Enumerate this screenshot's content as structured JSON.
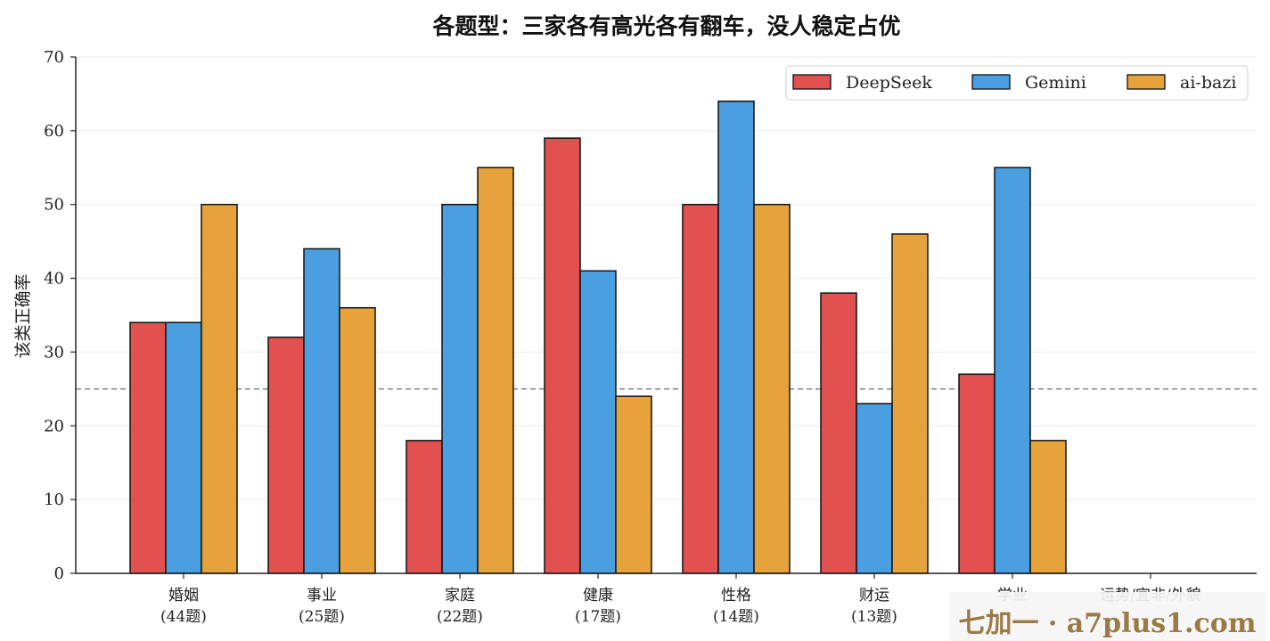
{
  "chart_data": {
    "type": "bar",
    "title": "各题型：三家各有高光各有翻车，没人稳定占优",
    "xlabel": "",
    "ylabel": "该类正确率",
    "ylim": [
      0,
      70
    ],
    "yticks": [
      0,
      10,
      20,
      30,
      40,
      50,
      60,
      70
    ],
    "grid": true,
    "legend_position": "top-right",
    "reference_line": 25,
    "categories": [
      "婚姻\n(44题)",
      "事业\n(25题)",
      "家庭\n(22题)",
      "健康\n(17题)",
      "性格\n(14题)",
      "财运\n(13题)",
      "学业",
      "运势/宜非/外貌"
    ],
    "series": [
      {
        "name": "DeepSeek",
        "color": "#e05150",
        "values": [
          34,
          32,
          18,
          59,
          50,
          38,
          27,
          0
        ]
      },
      {
        "name": "Gemini",
        "color": "#4a9fe0",
        "values": [
          34,
          44,
          50,
          41,
          64,
          23,
          55,
          0
        ]
      },
      {
        "name": "ai-bazi",
        "color": "#e6a33c",
        "values": [
          50,
          36,
          55,
          24,
          50,
          46,
          18,
          0
        ]
      }
    ]
  },
  "watermark": "七加一 · a7plus1.com"
}
